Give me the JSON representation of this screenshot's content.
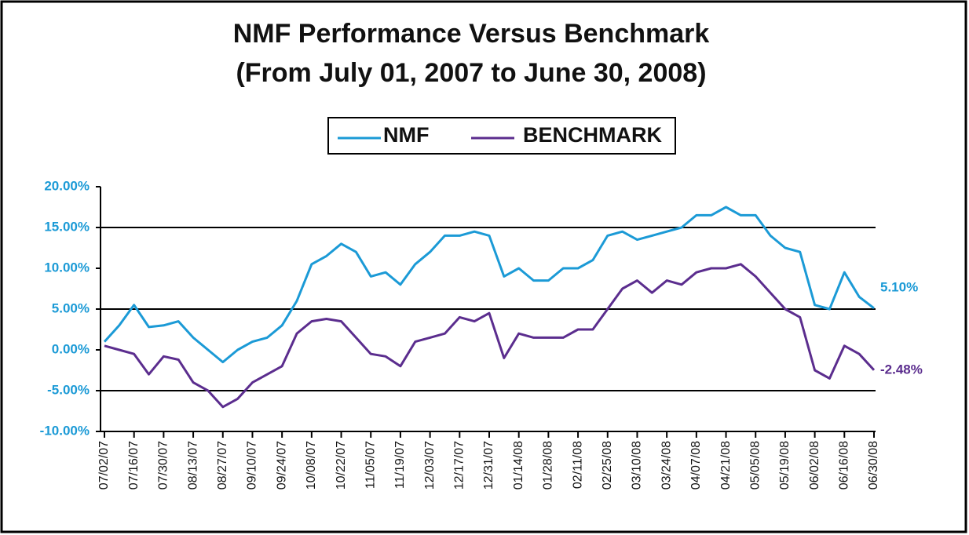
{
  "chart_data": {
    "type": "line",
    "title": "NMF Performance Versus Benchmark",
    "subtitle": "(From July  01, 2007 to June 30, 2008)",
    "categories": [
      "07/02/07",
      null,
      "07/16/07",
      null,
      "07/30/07",
      null,
      "08/13/07",
      null,
      "08/27/07",
      null,
      "09/10/07",
      null,
      "09/24/07",
      null,
      "10/08/07",
      null,
      "10/22/07",
      null,
      "11/05/07",
      null,
      "11/19/07",
      null,
      "12/03/07",
      null,
      "12/17/07",
      null,
      "12/31/07",
      null,
      "01/14/08",
      null,
      "01/28/08",
      null,
      "02/11/08",
      null,
      "02/25/08",
      null,
      "03/10/08",
      null,
      "03/24/08",
      null,
      "04/07/08",
      null,
      "04/21/08",
      null,
      "05/05/08",
      null,
      "05/19/08",
      null,
      "06/02/08",
      null,
      "06/16/08",
      null,
      "06/30/08"
    ],
    "series": [
      {
        "name": "NMF",
        "color": "#1b9ad6",
        "values": [
          1,
          3,
          5.5,
          2.8,
          3,
          3.5,
          1.5,
          0,
          -1.5,
          0,
          1,
          1.5,
          3,
          6,
          10.5,
          11.5,
          13,
          12,
          9,
          9.5,
          8,
          10.5,
          12,
          14,
          14,
          14.5,
          14,
          9,
          10,
          8.5,
          8.5,
          10,
          10,
          11,
          14,
          14.5,
          13.5,
          14,
          14.5,
          15,
          16.5,
          16.5,
          17.5,
          16.5,
          16.5,
          14,
          12.5,
          12,
          5.5,
          5,
          9.5,
          6.5,
          5.1
        ],
        "value_labels": [
          null,
          null,
          null,
          null,
          null,
          null,
          null,
          null,
          null,
          null,
          null,
          null,
          null,
          null,
          null,
          null,
          null,
          null,
          null,
          null,
          null,
          null,
          null,
          null,
          null,
          null,
          null,
          null,
          null,
          null,
          null,
          null,
          null,
          null,
          null,
          null,
          null,
          null,
          null,
          null,
          null,
          null,
          null,
          null,
          null,
          null,
          null,
          null,
          null,
          null,
          null,
          null,
          "5.10%"
        ]
      },
      {
        "name": "BENCHMARK",
        "color": "#5b2d8e",
        "values": [
          0.5,
          0,
          -0.5,
          -3,
          -0.8,
          -1.2,
          -4,
          -5,
          -7,
          -6,
          -4,
          -3,
          -2,
          2,
          3.5,
          3.8,
          3.5,
          1.5,
          -0.5,
          -0.8,
          -2,
          1,
          1.5,
          2,
          4,
          3.5,
          4.5,
          -1,
          2,
          1.5,
          1.5,
          1.5,
          2.5,
          2.5,
          5,
          7.5,
          8.5,
          7,
          8.5,
          8,
          9.5,
          10,
          10,
          10.5,
          9,
          7,
          5,
          4,
          -2.5,
          -3.5,
          0.5,
          -0.5,
          -2.48
        ],
        "value_labels": [
          null,
          null,
          null,
          null,
          null,
          null,
          null,
          null,
          null,
          null,
          null,
          null,
          null,
          null,
          null,
          null,
          null,
          null,
          null,
          null,
          null,
          null,
          null,
          null,
          null,
          null,
          null,
          null,
          null,
          null,
          null,
          null,
          null,
          null,
          null,
          null,
          null,
          null,
          null,
          null,
          null,
          null,
          null,
          null,
          null,
          null,
          null,
          null,
          null,
          null,
          null,
          null,
          "-2.48%"
        ]
      }
    ],
    "ylim": [
      -10,
      20
    ],
    "yticks": [
      {
        "value": -10,
        "label": "-10.00%"
      },
      {
        "value": -5,
        "label": "-5.00%"
      },
      {
        "value": 0,
        "label": "0.00%"
      },
      {
        "value": 5,
        "label": "5.00%"
      },
      {
        "value": 10,
        "label": "10.00%"
      },
      {
        "value": 15,
        "label": "15.00%"
      },
      {
        "value": 20,
        "label": "20.00%"
      }
    ],
    "grid_lines": [
      -5,
      5,
      15
    ],
    "ytick_color": "#1b9ad6"
  }
}
